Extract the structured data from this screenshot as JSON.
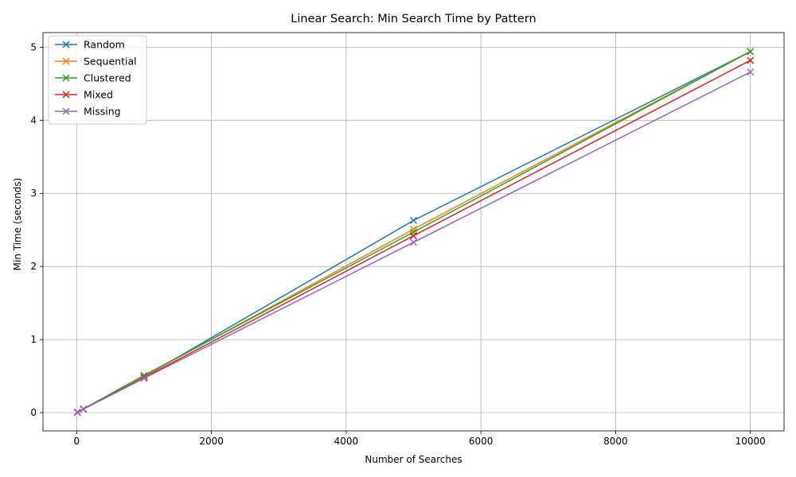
{
  "chart_data": {
    "type": "line",
    "title": "Linear Search: Min Search Time by Pattern",
    "xlabel": "Number of Searches",
    "ylabel": "Min Time (seconds)",
    "xlim": [
      -500,
      10500
    ],
    "ylim": [
      -0.25,
      5.2
    ],
    "xticks": [
      0,
      2000,
      4000,
      6000,
      8000,
      10000
    ],
    "yticks": [
      0,
      1,
      2,
      3,
      4,
      5
    ],
    "grid": true,
    "legend_position": "top-left",
    "marker": "x",
    "x": [
      10,
      100,
      1000,
      5000,
      10000
    ],
    "series": [
      {
        "name": "Random",
        "color": "#1f77b4",
        "values": [
          0.005,
          0.049,
          0.49,
          2.63,
          4.94
        ]
      },
      {
        "name": "Sequential",
        "color": "#ff7f0e",
        "values": [
          0.005,
          0.048,
          0.5,
          2.51,
          4.94
        ]
      },
      {
        "name": "Clustered",
        "color": "#2ca02c",
        "values": [
          0.005,
          0.05,
          0.51,
          2.47,
          4.94
        ]
      },
      {
        "name": "Mixed",
        "color": "#d62728",
        "values": [
          0.005,
          0.048,
          0.48,
          2.42,
          4.82
        ]
      },
      {
        "name": "Missing",
        "color": "#9467bd",
        "values": [
          0.005,
          0.047,
          0.47,
          2.33,
          4.66
        ]
      }
    ]
  }
}
